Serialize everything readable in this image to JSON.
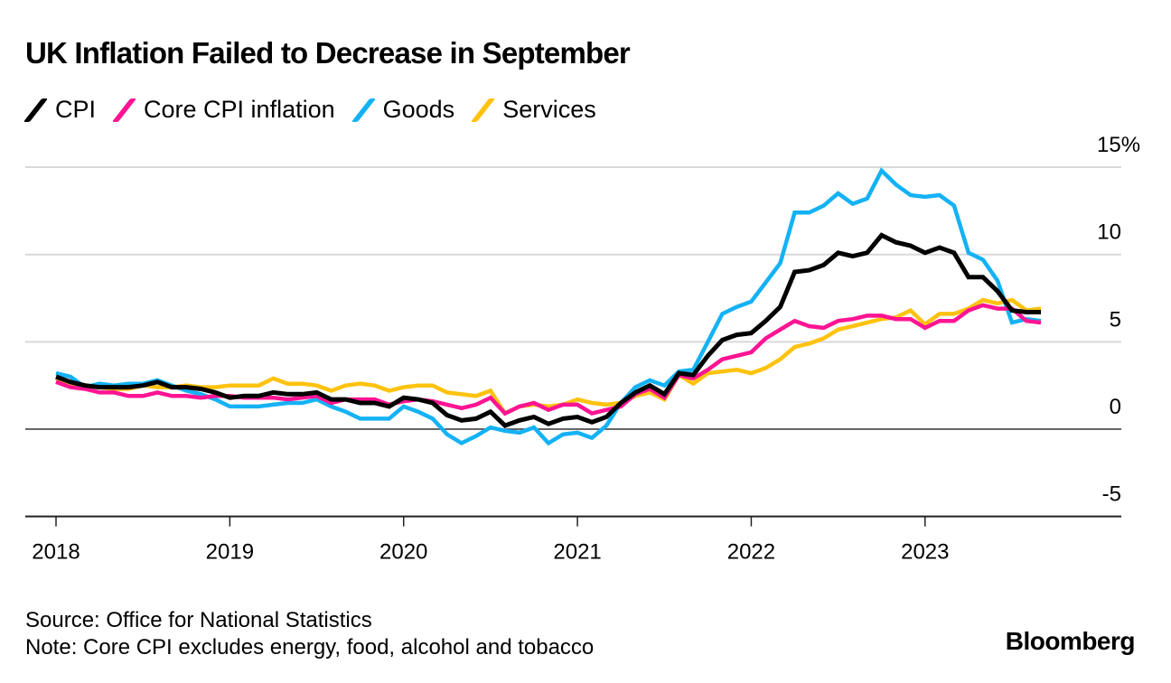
{
  "title": "UK Inflation Failed to Decrease in September",
  "legend": [
    {
      "label": "CPI",
      "color": "#000000",
      "icon": "slash-swatch-icon"
    },
    {
      "label": "Core CPI inflation",
      "color": "#ff1493",
      "icon": "slash-swatch-icon"
    },
    {
      "label": "Goods",
      "color": "#14b2f5",
      "icon": "slash-swatch-icon"
    },
    {
      "label": "Services",
      "color": "#ffc20e",
      "icon": "slash-swatch-icon"
    }
  ],
  "footer": {
    "source": "Source: Office for National Statistics",
    "note": "Note: Core CPI excludes energy, food, alcohol and tobacco"
  },
  "brand": "Bloomberg",
  "chart_data": {
    "type": "line",
    "title": "UK Inflation Failed to Decrease in September",
    "xlabel": "",
    "ylabel": "",
    "x_start": "2018-01",
    "x_end": "2023-09",
    "frequency": "monthly",
    "x_tick_labels": [
      "2018",
      "2019",
      "2020",
      "2021",
      "2022",
      "2023"
    ],
    "y_tick_labels": [
      "15%",
      "10",
      "5",
      "0",
      "-5"
    ],
    "y_ticks": [
      15,
      10,
      5,
      0,
      -5
    ],
    "ylim": [
      -5,
      15
    ],
    "grid": true,
    "legend_position": "top-left",
    "series": [
      {
        "name": "CPI",
        "color": "#000000",
        "values": [
          3.0,
          2.7,
          2.5,
          2.4,
          2.4,
          2.4,
          2.5,
          2.7,
          2.4,
          2.4,
          2.3,
          2.1,
          1.8,
          1.9,
          1.9,
          2.1,
          2.0,
          2.0,
          2.1,
          1.7,
          1.7,
          1.5,
          1.5,
          1.3,
          1.8,
          1.7,
          1.5,
          0.8,
          0.5,
          0.6,
          1.0,
          0.2,
          0.5,
          0.7,
          0.3,
          0.6,
          0.7,
          0.4,
          0.7,
          1.5,
          2.1,
          2.5,
          2.0,
          3.2,
          3.1,
          4.2,
          5.1,
          5.4,
          5.5,
          6.2,
          7.0,
          9.0,
          9.1,
          9.4,
          10.1,
          9.9,
          10.1,
          11.1,
          10.7,
          10.5,
          10.1,
          10.4,
          10.1,
          8.7,
          8.7,
          7.9,
          6.8,
          6.7,
          6.7
        ]
      },
      {
        "name": "Core CPI inflation",
        "color": "#ff1493",
        "values": [
          2.7,
          2.4,
          2.3,
          2.1,
          2.1,
          1.9,
          1.9,
          2.1,
          1.9,
          1.9,
          1.8,
          1.9,
          1.9,
          1.8,
          1.8,
          1.8,
          1.7,
          1.8,
          1.9,
          1.5,
          1.7,
          1.7,
          1.7,
          1.4,
          1.6,
          1.7,
          1.6,
          1.4,
          1.2,
          1.4,
          1.8,
          0.9,
          1.3,
          1.5,
          1.1,
          1.4,
          1.4,
          0.9,
          1.1,
          1.3,
          2.0,
          2.3,
          1.8,
          3.1,
          2.9,
          3.4,
          4.0,
          4.2,
          4.4,
          5.2,
          5.7,
          6.2,
          5.9,
          5.8,
          6.2,
          6.3,
          6.5,
          6.5,
          6.3,
          6.3,
          5.8,
          6.2,
          6.2,
          6.8,
          7.1,
          6.9,
          6.9,
          6.2,
          6.1
        ]
      },
      {
        "name": "Goods",
        "color": "#14b2f5",
        "values": [
          3.2,
          3.0,
          2.4,
          2.6,
          2.5,
          2.6,
          2.6,
          2.8,
          2.5,
          2.2,
          2.0,
          1.7,
          1.3,
          1.3,
          1.3,
          1.4,
          1.5,
          1.5,
          1.7,
          1.3,
          1.0,
          0.6,
          0.6,
          0.6,
          1.3,
          1.0,
          0.6,
          -0.3,
          -0.8,
          -0.4,
          0.1,
          -0.1,
          -0.2,
          0.1,
          -0.8,
          -0.3,
          -0.2,
          -0.5,
          0.2,
          1.5,
          2.4,
          2.8,
          2.5,
          3.3,
          3.4,
          5.0,
          6.6,
          7.0,
          7.3,
          8.4,
          9.5,
          12.4,
          12.4,
          12.8,
          13.5,
          12.9,
          13.2,
          14.8,
          14.0,
          13.4,
          13.3,
          13.4,
          12.8,
          10.1,
          9.7,
          8.5,
          6.1,
          6.3,
          6.2
        ]
      },
      {
        "name": "Services",
        "color": "#ffc20e",
        "values": [
          2.9,
          2.6,
          2.5,
          2.4,
          2.3,
          2.3,
          2.5,
          2.4,
          2.4,
          2.5,
          2.4,
          2.4,
          2.5,
          2.5,
          2.5,
          2.9,
          2.6,
          2.6,
          2.5,
          2.2,
          2.5,
          2.6,
          2.5,
          2.2,
          2.4,
          2.5,
          2.5,
          2.1,
          2.0,
          1.9,
          2.2,
          0.9,
          1.3,
          1.4,
          1.3,
          1.4,
          1.7,
          1.5,
          1.4,
          1.5,
          1.9,
          2.1,
          1.7,
          3.1,
          2.6,
          3.2,
          3.3,
          3.4,
          3.2,
          3.5,
          4.0,
          4.7,
          4.9,
          5.2,
          5.7,
          5.9,
          6.1,
          6.3,
          6.4,
          6.8,
          6.0,
          6.6,
          6.6,
          6.9,
          7.4,
          7.2,
          7.4,
          6.8,
          6.9
        ]
      }
    ]
  }
}
